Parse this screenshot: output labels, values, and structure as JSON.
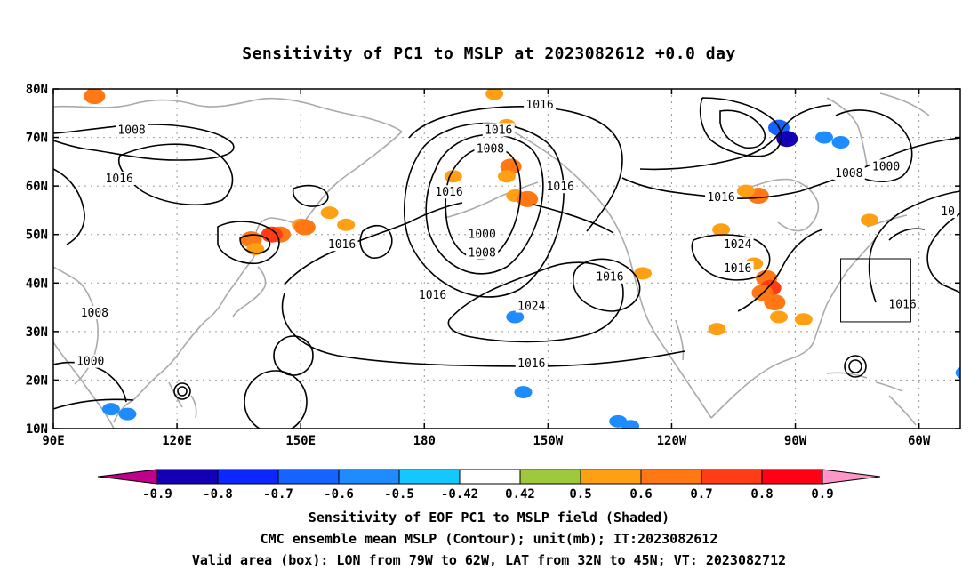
{
  "title": "Sensitivity of PC1 to MSLP at 2023082612 +0.0 day",
  "captions": {
    "line1": "Sensitivity of EOF PC1 to MSLP field (Shaded)",
    "line2": "CMC ensemble mean MSLP (Contour); unit(mb); IT:2023082612",
    "line3": "Valid area (box): LON from 79W to 62W, LAT from 32N to 45N; VT: 2023082712"
  },
  "map": {
    "lon_range": [
      90,
      310
    ],
    "lat_range": [
      10,
      80
    ],
    "lat_ticks": [
      {
        "lat": 80,
        "label": "80N"
      },
      {
        "lat": 70,
        "label": "70N"
      },
      {
        "lat": 60,
        "label": "60N"
      },
      {
        "lat": 50,
        "label": "50N"
      },
      {
        "lat": 40,
        "label": "40N"
      },
      {
        "lat": 30,
        "label": "30N"
      },
      {
        "lat": 20,
        "label": "20N"
      },
      {
        "lat": 10,
        "label": "10N"
      }
    ],
    "lon_ticks": [
      {
        "lon": 90,
        "label": "90E"
      },
      {
        "lon": 120,
        "label": "120E"
      },
      {
        "lon": 150,
        "label": "150E"
      },
      {
        "lon": 180,
        "label": "180"
      },
      {
        "lon": 210,
        "label": "150W"
      },
      {
        "lon": 240,
        "label": "120W"
      },
      {
        "lon": 270,
        "label": "90W"
      },
      {
        "lon": 300,
        "label": "60W"
      }
    ],
    "valid_box": {
      "lon_min": 281,
      "lon_max": 298,
      "lat_min": 32,
      "lat_max": 45
    },
    "contour_labels": [
      {
        "lon": 208,
        "lat": 76.7,
        "text": "1016"
      },
      {
        "lon": 109,
        "lat": 71.5,
        "text": "1008"
      },
      {
        "lon": 198,
        "lat": 71.5,
        "text": "1016"
      },
      {
        "lon": 196,
        "lat": 67.6,
        "text": "1008"
      },
      {
        "lon": 292,
        "lat": 64.0,
        "text": "1000"
      },
      {
        "lon": 106,
        "lat": 61.5,
        "text": "1016"
      },
      {
        "lon": 283,
        "lat": 62.6,
        "text": "1008"
      },
      {
        "lon": 186,
        "lat": 58.7,
        "text": "1016"
      },
      {
        "lon": 213,
        "lat": 59.8,
        "text": "1016"
      },
      {
        "lon": 252,
        "lat": 57.6,
        "text": "1016"
      },
      {
        "lon": 307,
        "lat": 54.7,
        "text": "10"
      },
      {
        "lon": 160,
        "lat": 47.9,
        "text": "1016"
      },
      {
        "lon": 256,
        "lat": 47.9,
        "text": "1024"
      },
      {
        "lon": 194,
        "lat": 50.0,
        "text": "1000"
      },
      {
        "lon": 194,
        "lat": 46.2,
        "text": "1008"
      },
      {
        "lon": 256,
        "lat": 43.0,
        "text": "1016"
      },
      {
        "lon": 225,
        "lat": 41.2,
        "text": "1016"
      },
      {
        "lon": 182,
        "lat": 37.5,
        "text": "1016"
      },
      {
        "lon": 206,
        "lat": 35.2,
        "text": "1024"
      },
      {
        "lon": 296,
        "lat": 35.6,
        "text": "1016"
      },
      {
        "lon": 100,
        "lat": 33.8,
        "text": "1008"
      },
      {
        "lon": 99,
        "lat": 23.8,
        "text": "1000"
      },
      {
        "lon": 206,
        "lat": 23.4,
        "text": "1016"
      }
    ],
    "shading": [
      {
        "lon": 100,
        "lat": 79.0,
        "level": 0.5
      },
      {
        "lon": 100,
        "lat": 78.5,
        "level": 0.6
      },
      {
        "lon": 145,
        "lat": 50.0,
        "level": 0.6
      },
      {
        "lon": 143,
        "lat": 50.0,
        "level": 0.7
      },
      {
        "lon": 138,
        "lat": 49.0,
        "level": 0.6
      },
      {
        "lon": 139,
        "lat": 47.0,
        "level": 0.5
      },
      {
        "lon": 150,
        "lat": 52.0,
        "level": 0.5
      },
      {
        "lon": 151,
        "lat": 51.5,
        "level": 0.6
      },
      {
        "lon": 157,
        "lat": 54.5,
        "level": 0.5
      },
      {
        "lon": 161,
        "lat": 52.0,
        "level": 0.5
      },
      {
        "lon": 200,
        "lat": 72.5,
        "level": 0.5
      },
      {
        "lon": 201,
        "lat": 64.0,
        "level": 0.6
      },
      {
        "lon": 200,
        "lat": 62.0,
        "level": 0.5
      },
      {
        "lon": 202,
        "lat": 58.0,
        "level": 0.5
      },
      {
        "lon": 205,
        "lat": 57.3,
        "level": 0.6
      },
      {
        "lon": 187,
        "lat": 62.0,
        "level": 0.5
      },
      {
        "lon": 197,
        "lat": 79.0,
        "level": 0.5
      },
      {
        "lon": 261,
        "lat": 58.0,
        "level": 0.6
      },
      {
        "lon": 258,
        "lat": 59.0,
        "level": 0.5
      },
      {
        "lon": 263,
        "lat": 41.0,
        "level": 0.6
      },
      {
        "lon": 264,
        "lat": 39.0,
        "level": 0.7
      },
      {
        "lon": 262,
        "lat": 38.0,
        "level": 0.6
      },
      {
        "lon": 265,
        "lat": 36.0,
        "level": 0.6
      },
      {
        "lon": 266,
        "lat": 33.0,
        "level": 0.5
      },
      {
        "lon": 272,
        "lat": 32.5,
        "level": 0.5
      },
      {
        "lon": 260,
        "lat": 44.0,
        "level": 0.5
      },
      {
        "lon": 252,
        "lat": 51.0,
        "level": 0.5
      },
      {
        "lon": 288,
        "lat": 53.0,
        "level": 0.5
      },
      {
        "lon": 233,
        "lat": 42.0,
        "level": 0.5
      },
      {
        "lon": 251,
        "lat": 30.5,
        "level": 0.5
      },
      {
        "lon": 266,
        "lat": 72.0,
        "level": -0.6
      },
      {
        "lon": 268,
        "lat": 69.7,
        "level": -0.8
      },
      {
        "lon": 277,
        "lat": 70.0,
        "level": -0.5
      },
      {
        "lon": 281,
        "lat": 69.0,
        "level": -0.5
      },
      {
        "lon": 104,
        "lat": 14.0,
        "level": -0.5
      },
      {
        "lon": 108,
        "lat": 13.0,
        "level": -0.5
      },
      {
        "lon": 227,
        "lat": 11.5,
        "level": -0.5
      },
      {
        "lon": 230,
        "lat": 10.5,
        "level": -0.5
      },
      {
        "lon": 202,
        "lat": 33.0,
        "level": -0.5
      },
      {
        "lon": 204,
        "lat": 17.5,
        "level": -0.5
      },
      {
        "lon": 311,
        "lat": 21.5,
        "level": -0.5
      }
    ]
  },
  "colorbar": {
    "colors": [
      "#c0008c",
      "#1400b4",
      "#0a28ff",
      "#1464ff",
      "#1e8cff",
      "#14c8ff",
      "#ffffff",
      "#a0c83c",
      "#ffa014",
      "#ff7814",
      "#ff3c14",
      "#ff0014",
      "#ff96c8"
    ],
    "labels": [
      "-0.9",
      "-0.8",
      "-0.7",
      "-0.6",
      "-0.5",
      "-0.42",
      "0.42",
      "0.5",
      "0.6",
      "0.7",
      "0.8",
      "0.9"
    ]
  }
}
